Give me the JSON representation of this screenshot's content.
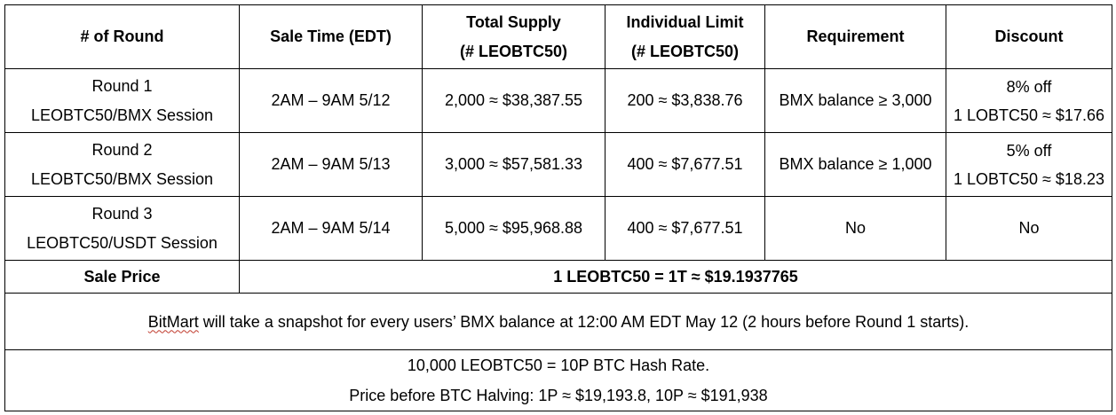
{
  "headers": {
    "round": "# of Round",
    "sale_time": "Sale Time (EDT)",
    "total_supply_line1": "Total Supply",
    "total_supply_line2": "(# LEOBTC50)",
    "individual_limit_line1": "Individual Limit",
    "individual_limit_line2": "(# LEOBTC50)",
    "requirement": "Requirement",
    "discount": "Discount"
  },
  "rows": [
    {
      "round_line1": "Round 1",
      "round_line2": "LEOBTC50/BMX Session",
      "sale_time": "2AM – 9AM 5/12",
      "total_supply": "2,000 ≈ $38,387.55",
      "individual_limit": "200 ≈ $3,838.76",
      "requirement": "BMX balance ≥ 3,000",
      "discount_line1": "8% off",
      "discount_line2": "1 LOBTC50 ≈ $17.66"
    },
    {
      "round_line1": "Round 2",
      "round_line2": "LEOBTC50/BMX Session",
      "sale_time": "2AM – 9AM 5/13",
      "total_supply": "3,000 ≈ $57,581.33",
      "individual_limit": "400 ≈ $7,677.51",
      "requirement": "BMX balance ≥ 1,000",
      "discount_line1": "5% off",
      "discount_line2": "1 LOBTC50 ≈ $18.23"
    },
    {
      "round_line1": "Round 3",
      "round_line2": "LEOBTC50/USDT Session",
      "sale_time": "2AM – 9AM 5/14",
      "total_supply": "5,000 ≈ $95,968.88",
      "individual_limit": "400 ≈ $7,677.51",
      "requirement": "No",
      "discount_line1": "No",
      "discount_line2": ""
    }
  ],
  "sale_price": {
    "label": "Sale Price",
    "value": "1 LEOBTC50 = 1T ≈ $19.1937765"
  },
  "snapshot_note": {
    "brand": "BitMart",
    "text": " will take a snapshot for every users’ BMX balance at 12:00 AM EDT May 12 (2 hours before Round 1 starts)."
  },
  "hash_note": {
    "line1": "10,000 LEOBTC50 = 10P BTC Hash Rate.",
    "line2": "Price before BTC Halving: 1P ≈ $19,193.8, 10P ≈ $191,938"
  }
}
